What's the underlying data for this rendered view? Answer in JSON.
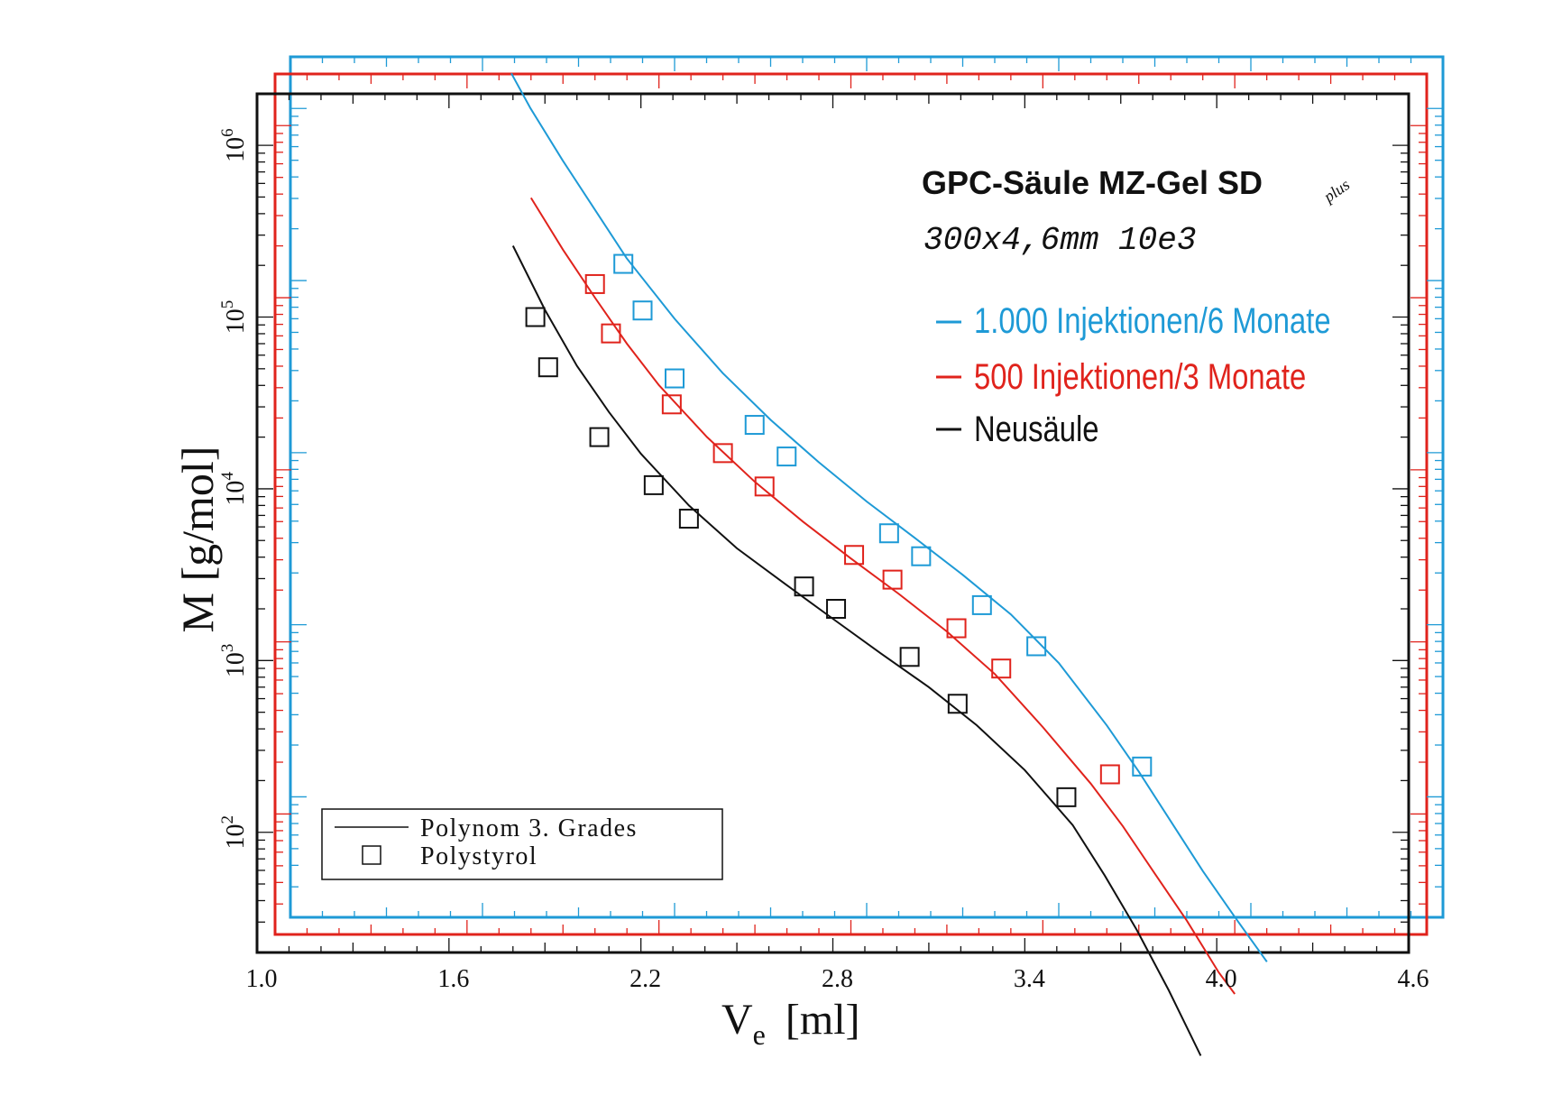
{
  "chart_data": {
    "type": "scatter",
    "title": "GPC-Säule MZ-Gel SD",
    "title_superscript": "plus",
    "subtitle": "300x4,6mm 10e3",
    "xlabel": "V",
    "xlabel_sub": "e",
    "xlabel_unit": "[ml]",
    "ylabel": "M [g/mol]",
    "xlim": [
      1.0,
      4.6
    ],
    "ylim_log10": [
      1.3,
      6.3
    ],
    "yscale": "log",
    "x_ticks": [
      "1.0",
      "1.6",
      "2.2",
      "2.8",
      "3.4",
      "4.0",
      "4.6"
    ],
    "y_ticks": [
      {
        "base": "10",
        "exp": "2",
        "value": 100
      },
      {
        "base": "10",
        "exp": "3",
        "value": 1000
      },
      {
        "base": "10",
        "exp": "4",
        "value": 10000
      },
      {
        "base": "10",
        "exp": "5",
        "value": 100000
      },
      {
        "base": "10",
        "exp": "6",
        "value": 1000000
      }
    ],
    "grid": false,
    "legend_series": [
      {
        "name": "1.000 Injektionen/6 Monate",
        "color": "#1e9ad6"
      },
      {
        "name": "500 Injektionen/3 Monate",
        "color": "#e0231c"
      },
      {
        "name": "Neusäule",
        "color": "#111111"
      }
    ],
    "legend_markers": {
      "placement": "bottom-left",
      "line_label": "Polynom 3. Grades",
      "marker_label": "Polystyrol"
    },
    "series": [
      {
        "name": "1.000 Injektionen/6 Monate",
        "color": "#1e9ad6",
        "frame_offset": "top-right-2",
        "points": [
          [
            2.04,
            125000
          ],
          [
            2.1,
            67000
          ],
          [
            2.2,
            27000
          ],
          [
            2.45,
            14500
          ],
          [
            2.55,
            9500
          ],
          [
            2.87,
            3400
          ],
          [
            2.97,
            2500
          ],
          [
            3.16,
            1300
          ],
          [
            3.33,
            750
          ],
          [
            3.66,
            150
          ]
        ],
        "fit_x": [
          1.69,
          1.75,
          1.85,
          1.95,
          2.05,
          2.2,
          2.35,
          2.5,
          2.65,
          2.8,
          2.95,
          3.1,
          3.25,
          3.4,
          3.55,
          3.65,
          3.75,
          3.85,
          3.95,
          4.05
        ],
        "fit_y": [
          1600000,
          1000000,
          500000,
          260000,
          135000,
          60000,
          29000,
          15500,
          8800,
          5200,
          3200,
          1950,
          1150,
          600,
          260,
          140,
          72,
          37,
          20,
          11
        ]
      },
      {
        "name": "500 Injektionen/3 Monate",
        "color": "#e0231c",
        "frame_offset": "top-right-1",
        "points": [
          [
            2.0,
            120000
          ],
          [
            2.05,
            62000
          ],
          [
            2.24,
            24000
          ],
          [
            2.4,
            12500
          ],
          [
            2.53,
            8000
          ],
          [
            2.81,
            3200
          ],
          [
            2.93,
            2300
          ],
          [
            3.13,
            1200
          ],
          [
            3.27,
            700
          ],
          [
            3.61,
            170
          ]
        ],
        "fit_x": [
          1.8,
          1.9,
          2.0,
          2.1,
          2.2,
          2.35,
          2.5,
          2.65,
          2.8,
          2.95,
          3.1,
          3.25,
          3.4,
          3.55,
          3.65,
          3.75,
          3.85,
          3.95,
          4.0
        ],
        "fit_y": [
          380000,
          190000,
          100000,
          54000,
          31000,
          15500,
          8500,
          5000,
          3050,
          1900,
          1150,
          650,
          320,
          150,
          85,
          45,
          24,
          12,
          9
        ]
      },
      {
        "name": "Neusäule",
        "color": "#111111",
        "frame_offset": "base",
        "points": [
          [
            1.87,
            100000
          ],
          [
            1.91,
            51000
          ],
          [
            2.07,
            20000
          ],
          [
            2.24,
            10500
          ],
          [
            2.35,
            6700
          ],
          [
            2.71,
            2700
          ],
          [
            2.81,
            2000
          ],
          [
            3.04,
            1050
          ],
          [
            3.19,
            560
          ],
          [
            3.53,
            160
          ]
        ],
        "fit_x": [
          1.8,
          1.9,
          2.0,
          2.1,
          2.2,
          2.35,
          2.5,
          2.65,
          2.8,
          2.95,
          3.1,
          3.25,
          3.4,
          3.55,
          3.65,
          3.75,
          3.85,
          3.95
        ],
        "fit_y": [
          260000,
          110000,
          52000,
          28000,
          16000,
          8000,
          4500,
          2800,
          1750,
          1100,
          700,
          420,
          230,
          110,
          56,
          27,
          12,
          5
        ]
      }
    ]
  }
}
